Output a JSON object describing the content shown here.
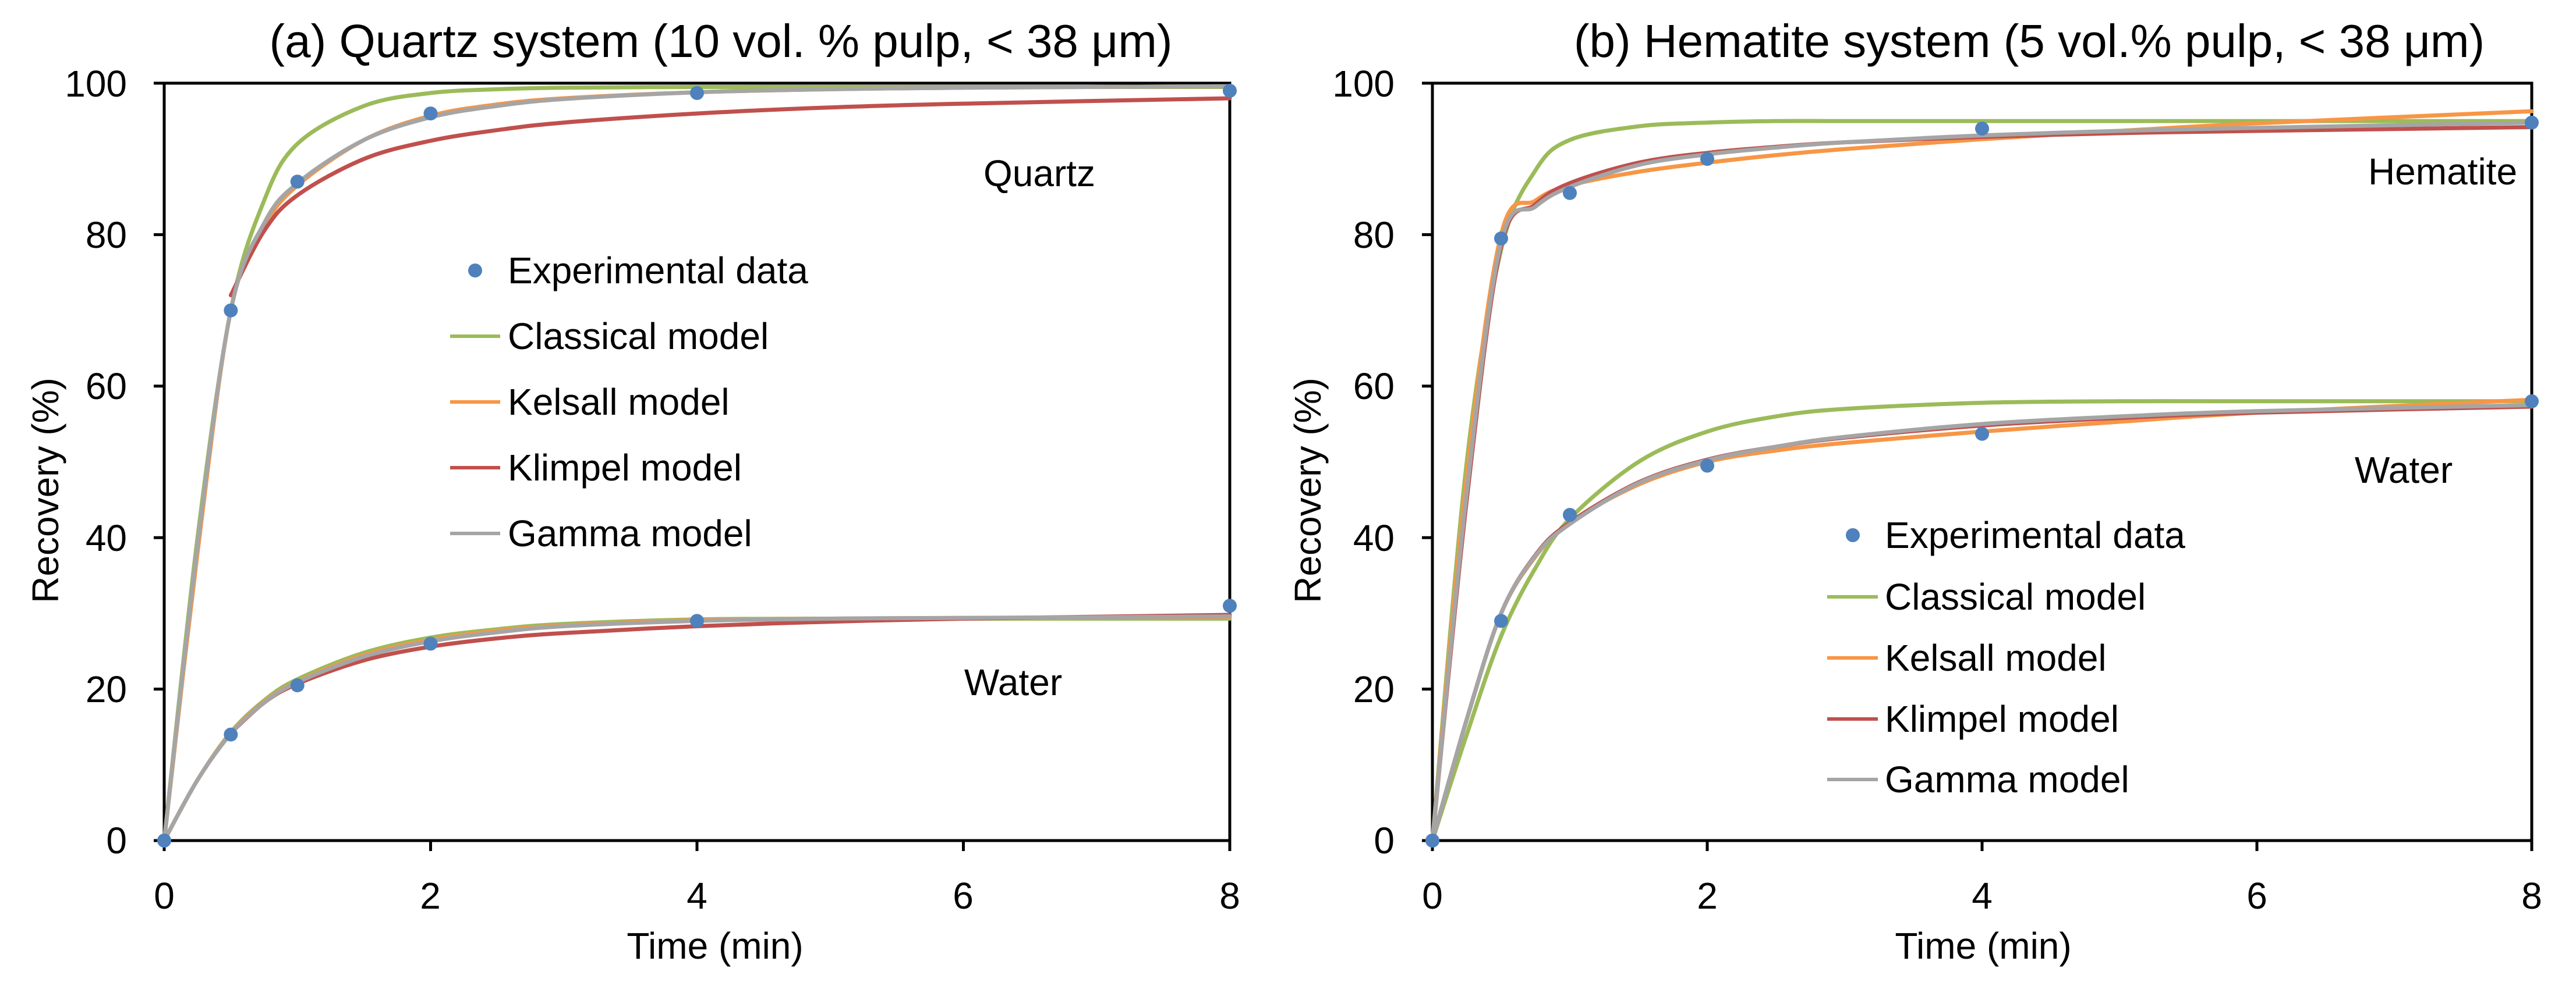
{
  "chart_data": [
    {
      "type": "line",
      "title": "(a) Quartz system (10 vol. % pulp, < 38 μm)",
      "xlabel": "Time (min)",
      "ylabel": "Recovery  (%)",
      "xlim": [
        0,
        8
      ],
      "ylim": [
        0,
        100
      ],
      "x_ticks": [
        "0",
        "2",
        "4",
        "6",
        "8"
      ],
      "y_ticks": [
        "0",
        "20",
        "40",
        "60",
        "80",
        "100"
      ],
      "legend": {
        "placement": "center",
        "entries": [
          "Experimental data",
          "Classical model",
          "Kelsall model",
          "Klimpel model",
          "Gamma model"
        ]
      },
      "annotations": [
        "Quartz",
        "Water"
      ],
      "experimental": [
        {
          "name": "Quartz",
          "x": [
            0,
            0.5,
            1,
            2,
            4,
            8
          ],
          "y": [
            0,
            70,
            87,
            96,
            98.7,
            99
          ]
        },
        {
          "name": "Water",
          "x": [
            0,
            0.5,
            1,
            2,
            4,
            8
          ],
          "y": [
            0,
            14,
            20.5,
            26,
            29,
            31
          ]
        }
      ],
      "models": [
        {
          "name": "Classical model",
          "color": "#9BBB59",
          "curves": [
            {
              "group": "Quartz",
              "x": [
                0,
                0.25,
                0.5,
                0.75,
                1,
                1.5,
                2,
                2.5,
                3,
                4,
                5,
                6,
                8
              ],
              "y": [
                0,
                40,
                70,
                84.5,
                92,
                97,
                98.7,
                99.2,
                99.4,
                99.5,
                99.5,
                99.5,
                99.5
              ]
            },
            {
              "group": "Water",
              "x": [
                0,
                0.25,
                0.5,
                0.75,
                1,
                1.5,
                2,
                2.5,
                3,
                4,
                5,
                6,
                8
              ],
              "y": [
                0,
                8,
                14.3,
                18.5,
                21.3,
                24.8,
                26.8,
                27.9,
                28.6,
                29.2,
                29.3,
                29.3,
                29.3
              ]
            }
          ]
        },
        {
          "name": "Kelsall model",
          "color": "#F79646",
          "curves": [
            {
              "group": "Quartz",
              "x": [
                0,
                0.25,
                0.5,
                0.75,
                1,
                1.5,
                2,
                2.5,
                3,
                4,
                5,
                6,
                8
              ],
              "y": [
                0,
                38,
                70,
                81,
                86.5,
                92.5,
                95.7,
                97.2,
                98,
                98.8,
                99.2,
                99.4,
                99.6
              ]
            },
            {
              "group": "Water",
              "x": [
                0,
                0.25,
                0.5,
                0.75,
                1,
                1.5,
                2,
                2.5,
                3,
                4,
                5,
                6,
                8
              ],
              "y": [
                0,
                8,
                14.2,
                18.3,
                21,
                24.5,
                26.5,
                27.7,
                28.4,
                29.1,
                29.3,
                29.4,
                29.5
              ]
            }
          ]
        },
        {
          "name": "Klimpel model",
          "color": "#C0504D",
          "curves": [
            {
              "group": "Quartz",
              "x": [
                0.5,
                0.75,
                1,
                1.5,
                2,
                2.5,
                3,
                4,
                5,
                6,
                8
              ],
              "y": [
                72,
                80.5,
                85.2,
                90,
                92.4,
                93.8,
                94.8,
                96,
                96.8,
                97.3,
                98
              ]
            },
            {
              "group": "Water",
              "x": [
                0.5,
                0.75,
                1,
                1.5,
                2,
                2.5,
                3,
                4,
                5,
                6,
                8
              ],
              "y": [
                14.2,
                18.2,
                20.7,
                23.8,
                25.6,
                26.7,
                27.4,
                28.3,
                28.9,
                29.3,
                29.8
              ]
            }
          ]
        },
        {
          "name": "Gamma model",
          "color": "#A5A5A5",
          "curves": [
            {
              "group": "Quartz",
              "x": [
                0,
                0.25,
                0.5,
                0.75,
                1,
                1.5,
                2,
                2.5,
                3,
                4,
                5,
                6,
                8
              ],
              "y": [
                0,
                39,
                70,
                81.5,
                86.8,
                92.5,
                95.5,
                97,
                97.9,
                98.8,
                99.2,
                99.4,
                99.6
              ]
            },
            {
              "group": "Water",
              "x": [
                0,
                0.25,
                0.5,
                0.75,
                1,
                1.5,
                2,
                2.5,
                3,
                4,
                5,
                6,
                8
              ],
              "y": [
                0,
                8,
                14.1,
                18.2,
                20.9,
                24.3,
                26.3,
                27.5,
                28.3,
                29,
                29.3,
                29.4,
                29.6
              ]
            }
          ]
        }
      ]
    },
    {
      "type": "line",
      "title": "(b) Hematite system (5 vol.% pulp, < 38 μm)",
      "xlabel": "Time (min)",
      "ylabel": "Recovery  (%)",
      "xlim": [
        0,
        8
      ],
      "ylim": [
        0,
        100
      ],
      "x_ticks": [
        "0",
        "2",
        "4",
        "6",
        "8"
      ],
      "y_ticks": [
        "0",
        "20",
        "40",
        "60",
        "80",
        "100"
      ],
      "legend": {
        "placement": "bottom-center",
        "entries": [
          "Experimental data",
          "Classical model",
          "Kelsall model",
          "Klimpel model",
          "Gamma model"
        ]
      },
      "annotations": [
        "Hematite",
        "Water"
      ],
      "experimental": [
        {
          "name": "Hematite",
          "x": [
            0,
            0.5,
            1,
            2,
            4,
            8
          ],
          "y": [
            0,
            79.5,
            85.5,
            90,
            94,
            94.8
          ]
        },
        {
          "name": "Water",
          "x": [
            0,
            0.5,
            1,
            2,
            4,
            8
          ],
          "y": [
            0,
            29,
            43,
            49.5,
            53.7,
            58
          ]
        }
      ],
      "models": [
        {
          "name": "Classical model",
          "color": "#9BBB59",
          "curves": [
            {
              "group": "Hematite",
              "x": [
                0,
                0.25,
                0.5,
                0.75,
                1,
                1.5,
                2,
                2.5,
                3,
                4,
                5,
                6,
                8
              ],
              "y": [
                0,
                50,
                78,
                88.5,
                92.5,
                94.3,
                94.8,
                95,
                95,
                95,
                95,
                95,
                95
              ]
            },
            {
              "group": "Water",
              "x": [
                0,
                0.25,
                0.5,
                0.75,
                1,
                1.5,
                2,
                2.5,
                3,
                4,
                5,
                6,
                8
              ],
              "y": [
                0,
                14,
                27,
                36,
                42.5,
                50,
                54,
                56,
                57,
                57.8,
                58,
                58,
                58
              ]
            }
          ]
        },
        {
          "name": "Kelsall model",
          "color": "#F79646",
          "curves": [
            {
              "group": "Hematite",
              "x": [
                0,
                0.25,
                0.5,
                0.75,
                1,
                1.5,
                2,
                2.5,
                3,
                4,
                5,
                6,
                8
              ],
              "y": [
                0,
                48,
                80,
                84.5,
                86.5,
                88.3,
                89.5,
                90.5,
                91.3,
                92.6,
                93.7,
                94.7,
                96.3
              ]
            },
            {
              "group": "Water",
              "x": [
                0,
                0.25,
                0.5,
                0.75,
                1,
                1.5,
                2,
                2.5,
                3,
                4,
                5,
                6,
                8
              ],
              "y": [
                0,
                16,
                30,
                37.5,
                42,
                47,
                50,
                51.5,
                52.5,
                54,
                55.3,
                56.5,
                58.2
              ]
            }
          ]
        },
        {
          "name": "Klimpel model",
          "color": "#C0504D",
          "curves": [
            {
              "group": "Hematite",
              "x": [
                0,
                0.25,
                0.5,
                0.75,
                1,
                1.5,
                2,
                2.5,
                3,
                4,
                5,
                6,
                8
              ],
              "y": [
                0,
                45,
                78.5,
                84,
                86.8,
                89.5,
                90.8,
                91.6,
                92.2,
                92.9,
                93.4,
                93.7,
                94.2
              ]
            },
            {
              "group": "Water",
              "x": [
                0,
                0.25,
                0.5,
                0.75,
                1,
                1.5,
                2,
                2.5,
                3,
                4,
                5,
                6,
                8
              ],
              "y": [
                0,
                16,
                30,
                37.7,
                42,
                47.3,
                50.3,
                52,
                53.2,
                54.8,
                55.8,
                56.5,
                57.3
              ]
            }
          ]
        },
        {
          "name": "Gamma model",
          "color": "#A5A5A5",
          "curves": [
            {
              "group": "Hematite",
              "x": [
                0,
                0.25,
                0.5,
                0.75,
                1,
                1.5,
                2,
                2.5,
                3,
                4,
                5,
                6,
                8
              ],
              "y": [
                0,
                46,
                79,
                83.7,
                86.3,
                89.2,
                90.6,
                91.5,
                92.2,
                93.1,
                93.7,
                94.1,
                94.8
              ]
            },
            {
              "group": "Water",
              "x": [
                0,
                0.25,
                0.5,
                0.75,
                1,
                1.5,
                2,
                2.5,
                3,
                4,
                5,
                6,
                8
              ],
              "y": [
                0,
                16,
                30,
                37.6,
                41.8,
                47.2,
                50.2,
                52,
                53.3,
                55,
                56,
                56.7,
                57.5
              ]
            }
          ]
        }
      ]
    }
  ],
  "styles": {
    "marker_color": "#4F81BD",
    "axis_color": "#000000",
    "text_color": "#000000"
  }
}
